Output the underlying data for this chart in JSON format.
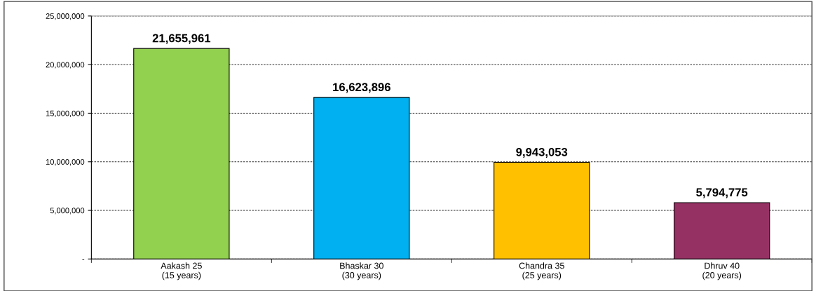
{
  "chart_data": {
    "type": "bar",
    "categories": [
      "Aakash 25\n(15 years)",
      "Bhaskar 30\n(30 years)",
      "Chandra 35\n(25 years)",
      "Dhruv 40\n(20 years)"
    ],
    "values": [
      21655961,
      16623896,
      9943053,
      5794775
    ],
    "colors": [
      "#92d050",
      "#00b0f0",
      "#ffc000",
      "#953163"
    ],
    "value_labels": [
      "21,655,961",
      "16,623,896",
      "9,943,053",
      "5,794,775"
    ],
    "ylim": [
      0,
      25000000
    ],
    "yticks": [
      {
        "value": 0,
        "label": "-"
      },
      {
        "value": 5000000,
        "label": "5,000,000"
      },
      {
        "value": 10000000,
        "label": "10,000,000"
      },
      {
        "value": 15000000,
        "label": "15,000,000"
      },
      {
        "value": 20000000,
        "label": "20,000,000"
      },
      {
        "value": 25000000,
        "label": "25,000,000"
      }
    ],
    "grid": "y"
  }
}
